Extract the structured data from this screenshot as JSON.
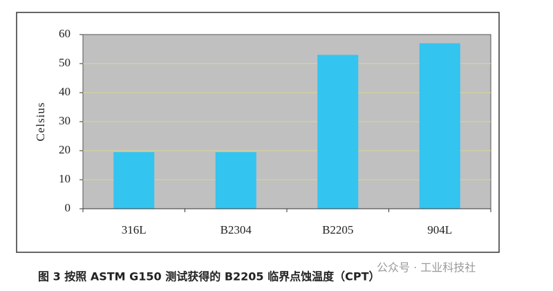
{
  "chart_data": {
    "type": "bar",
    "y_label": "Celsius",
    "categories": [
      "316L",
      "B2304",
      "B2205",
      "904L"
    ],
    "values": [
      19.5,
      19.5,
      53,
      57
    ],
    "color": "#33c4f0",
    "ylim": [
      0,
      60
    ],
    "yticks": [
      0,
      10,
      20,
      30,
      40,
      50,
      60
    ],
    "grid": true,
    "caption": "图 3    按照 ASTM G150 测试获得的 B2205 临界点蚀温度（CPT）",
    "watermark": "公众号 · 工业科技社"
  }
}
